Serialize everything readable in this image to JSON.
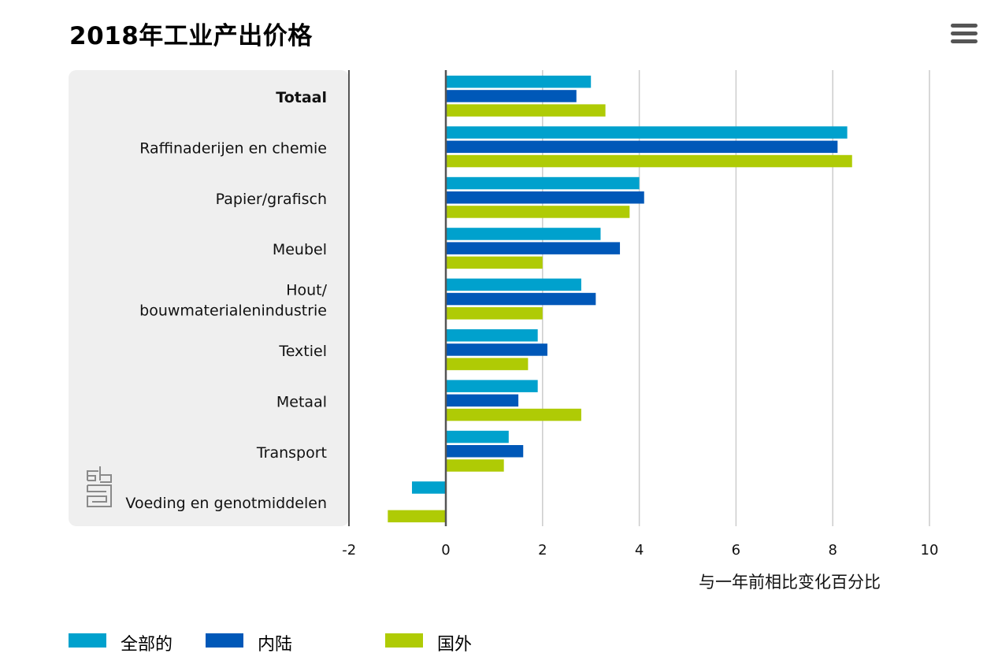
{
  "title": "2018年工业产出价格",
  "menu_icon": "hamburger-menu-icon",
  "logo_icon": "cbs-logo-icon",
  "colors": {
    "panel": "#efefef",
    "axis": "#555555",
    "grid": "#cccccc",
    "totaal": "#00a1cd",
    "binnenland": "#0058b8",
    "buitenland": "#afcb05"
  },
  "chart_data": {
    "type": "bar",
    "orientation": "horizontal",
    "title": "2018年工业产出价格",
    "xlabel": "与一年前相比变化百分比",
    "ylabel": "",
    "xlim": [
      -2,
      10
    ],
    "xticks": [
      "-2",
      "0",
      "2",
      "4",
      "6",
      "8",
      "10"
    ],
    "xtick_values": [
      -2,
      0,
      2,
      4,
      6,
      8,
      10
    ],
    "grid": true,
    "legend_position": "bottom",
    "categories": [
      "Totaal",
      "Raffinaderijen en chemie",
      "Papier/grafisch",
      "Meubel",
      "Hout/ bouwmaterialenindustrie",
      "Textiel",
      "Metaal",
      "Transport",
      "Voeding en genotmiddelen"
    ],
    "category_lines": [
      [
        "Totaal"
      ],
      [
        "Raffinaderijen en chemie"
      ],
      [
        "Papier/grafisch"
      ],
      [
        "Meubel"
      ],
      [
        "Hout/",
        "bouwmaterialenindustrie"
      ],
      [
        "Textiel"
      ],
      [
        "Metaal"
      ],
      [
        "Transport"
      ],
      [
        "Voeding en genotmiddelen"
      ]
    ],
    "series": [
      {
        "name": "全部的",
        "key": "totaal",
        "values": [
          3.0,
          8.3,
          4.0,
          3.2,
          2.8,
          1.9,
          1.9,
          1.3,
          -0.7
        ]
      },
      {
        "name": "内陆",
        "key": "binnenland",
        "values": [
          2.7,
          8.1,
          4.1,
          3.6,
          3.1,
          2.1,
          1.5,
          1.6,
          0.0
        ]
      },
      {
        "name": "国外",
        "key": "buitenland",
        "values": [
          3.3,
          8.4,
          3.8,
          2.0,
          2.0,
          1.7,
          2.8,
          1.2,
          -1.2
        ]
      }
    ]
  }
}
